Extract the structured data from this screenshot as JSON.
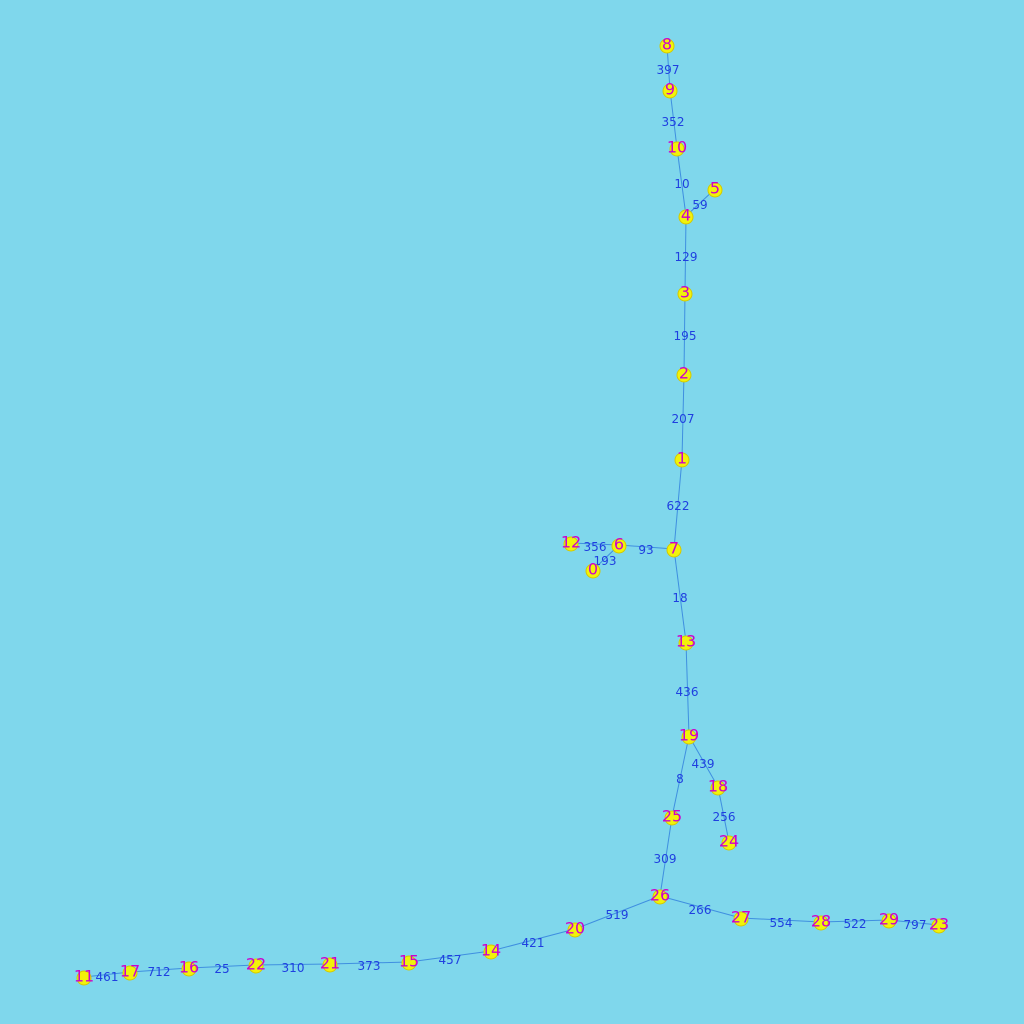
{
  "graph": {
    "colors": {
      "background": "#7fd7ec",
      "node_fill": "#f2f20a",
      "node_label": "#cc00cc",
      "edge_line": "#3f8fe0",
      "edge_label": "#1f3fe0"
    },
    "nodes": [
      "0",
      "1",
      "2",
      "3",
      "4",
      "5",
      "6",
      "7",
      "8",
      "9",
      "10",
      "11",
      "12",
      "13",
      "14",
      "15",
      "16",
      "17",
      "18",
      "19",
      "20",
      "21",
      "22",
      "23",
      "24",
      "25",
      "26",
      "27",
      "28",
      "29"
    ],
    "edges": [
      {
        "source": "8",
        "target": "9",
        "label": "397"
      },
      {
        "source": "9",
        "target": "10",
        "label": "352"
      },
      {
        "source": "10",
        "target": "4",
        "label": "10"
      },
      {
        "source": "5",
        "target": "4",
        "label": "59"
      },
      {
        "source": "4",
        "target": "3",
        "label": "129"
      },
      {
        "source": "3",
        "target": "2",
        "label": "195"
      },
      {
        "source": "2",
        "target": "1",
        "label": "207"
      },
      {
        "source": "1",
        "target": "7",
        "label": "622"
      },
      {
        "source": "12",
        "target": "6",
        "label": "356"
      },
      {
        "source": "0",
        "target": "6",
        "label": "193"
      },
      {
        "source": "6",
        "target": "7",
        "label": "93"
      },
      {
        "source": "7",
        "target": "13",
        "label": "18"
      },
      {
        "source": "13",
        "target": "19",
        "label": "436"
      },
      {
        "source": "19",
        "target": "18",
        "label": "439"
      },
      {
        "source": "19",
        "target": "25",
        "label": "8"
      },
      {
        "source": "18",
        "target": "24",
        "label": "256"
      },
      {
        "source": "25",
        "target": "26",
        "label": "309"
      },
      {
        "source": "26",
        "target": "20",
        "label": "519"
      },
      {
        "source": "26",
        "target": "27",
        "label": "266"
      },
      {
        "source": "27",
        "target": "28",
        "label": "554"
      },
      {
        "source": "28",
        "target": "29",
        "label": "522"
      },
      {
        "source": "29",
        "target": "23",
        "label": "797"
      },
      {
        "source": "20",
        "target": "14",
        "label": "421"
      },
      {
        "source": "14",
        "target": "15",
        "label": "457"
      },
      {
        "source": "15",
        "target": "21",
        "label": "373"
      },
      {
        "source": "21",
        "target": "22",
        "label": "310"
      },
      {
        "source": "22",
        "target": "16",
        "label": "25"
      },
      {
        "source": "16",
        "target": "17",
        "label": "712"
      },
      {
        "source": "17",
        "target": "11",
        "label": "461"
      }
    ]
  }
}
